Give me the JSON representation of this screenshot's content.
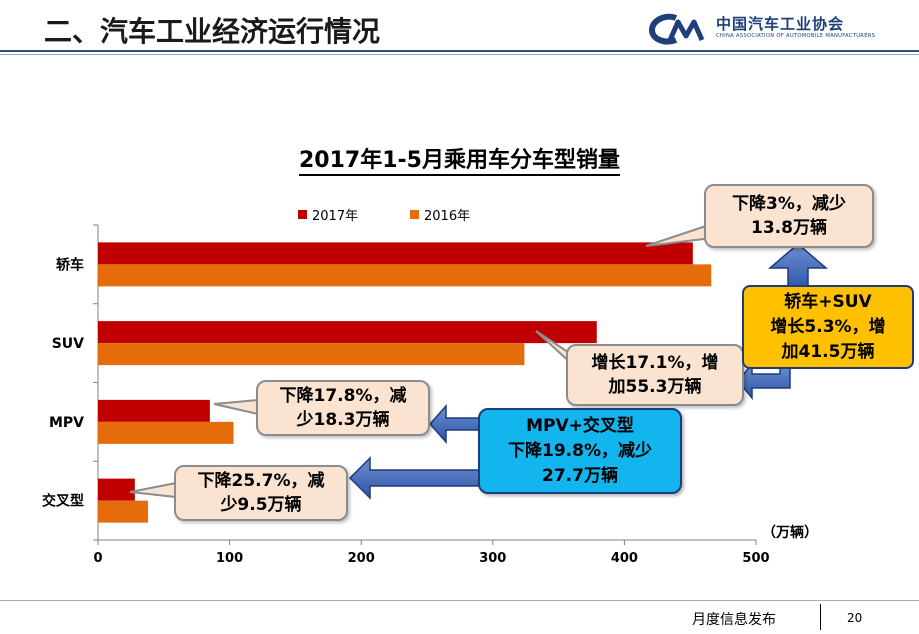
{
  "header": {
    "title": "二、汽车工业经济运行情况",
    "logo_cn": "中国汽车工业协会",
    "logo_en": "CHINA ASSOCIATION OF AUTOMOBILE MANUFACTURERS"
  },
  "chart_data": {
    "type": "bar",
    "orientation": "horizontal",
    "title": "2017年1-5月乘用车分车型销量",
    "unit_label": "（万辆）",
    "categories": [
      "轿车",
      "SUV",
      "MPV",
      "交叉型"
    ],
    "series": [
      {
        "name": "2017年",
        "color": "#c00000",
        "values": [
          452,
          379,
          85,
          28
        ]
      },
      {
        "name": "2016年",
        "color": "#e46c0a",
        "values": [
          466,
          324,
          103,
          38
        ]
      }
    ],
    "xlim": [
      0,
      500
    ],
    "x_ticks": [
      "0",
      "100",
      "200",
      "300",
      "400",
      "500"
    ],
    "legend_position": "top",
    "grid": false
  },
  "annotations": {
    "sedan": [
      "下降3%，减少",
      "13.8万辆"
    ],
    "suv": [
      "增长17.1%，增",
      "加55.3万辆"
    ],
    "mpv": [
      "下降17.8%，减",
      "少18.3万辆"
    ],
    "crossover": [
      "下降25.7%，减",
      "少9.5万辆"
    ],
    "sedan_suv": [
      "轿车+SUV",
      "增长5.3%，增",
      "加41.5万辆"
    ],
    "mpv_crossover": [
      "MPV+交叉型",
      "下降19.8%，减少",
      "27.7万辆"
    ]
  },
  "footer": {
    "text": "月度信息发布",
    "page_number": "20"
  },
  "colors": {
    "accent_blue": "#2c4f86",
    "bar_2017": "#c00000",
    "bar_2016": "#e46c0a",
    "callout_fill": "#fbe3d1",
    "callout_yellow": "#ffc000",
    "callout_blue": "#12b5ee"
  }
}
